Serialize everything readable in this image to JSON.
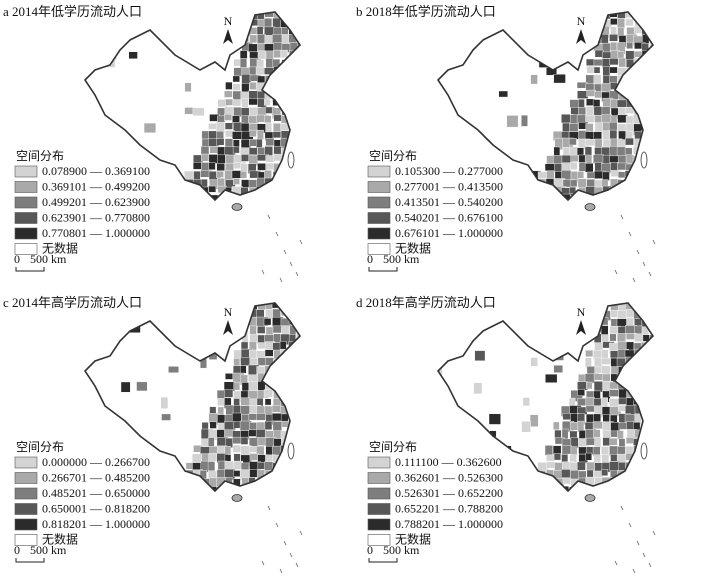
{
  "panels": [
    {
      "title": "a 2014年低学历流动人口",
      "legend_title": "空间分布",
      "legend": [
        {
          "label": "0.078900 — 0.369100",
          "color": "#d3d3d3"
        },
        {
          "label": "0.369101 — 0.499200",
          "color": "#a9a9a9"
        },
        {
          "label": "0.499201 — 0.623900",
          "color": "#7e7e7e"
        },
        {
          "label": "0.623901 — 0.770800",
          "color": "#575757"
        },
        {
          "label": "0.770801 — 1.000000",
          "color": "#2b2b2b"
        }
      ],
      "no_data": {
        "label": "无数据",
        "color": "#ffffff"
      },
      "north": "N",
      "scale": [
        "0",
        "500 km"
      ]
    },
    {
      "title": "b 2018年低学历流动人口",
      "legend_title": "空间分布",
      "legend": [
        {
          "label": "0.105300 — 0.277000",
          "color": "#d3d3d3"
        },
        {
          "label": "0.277001 — 0.413500",
          "color": "#a9a9a9"
        },
        {
          "label": "0.413501 — 0.540200",
          "color": "#7e7e7e"
        },
        {
          "label": "0.540201 — 0.676100",
          "color": "#575757"
        },
        {
          "label": "0.676101 — 1.000000",
          "color": "#2b2b2b"
        }
      ],
      "no_data": {
        "label": "无数据",
        "color": "#ffffff"
      },
      "north": "N",
      "scale": [
        "0",
        "500 km"
      ]
    },
    {
      "title": "c 2014年高学历流动人口",
      "legend_title": "空间分布",
      "legend": [
        {
          "label": "0.000000 — 0.266700",
          "color": "#d3d3d3"
        },
        {
          "label": "0.266701 — 0.485200",
          "color": "#a9a9a9"
        },
        {
          "label": "0.485201 — 0.650000",
          "color": "#7e7e7e"
        },
        {
          "label": "0.650001 — 0.818200",
          "color": "#575757"
        },
        {
          "label": "0.818201 — 1.000000",
          "color": "#2b2b2b"
        }
      ],
      "no_data": {
        "label": "无数据",
        "color": "#ffffff"
      },
      "north": "N",
      "scale": [
        "0",
        "500 km"
      ]
    },
    {
      "title": "d 2018年高学历流动人口",
      "legend_title": "空间分布",
      "legend": [
        {
          "label": "0.111100 — 0.362600",
          "color": "#d3d3d3"
        },
        {
          "label": "0.362601 — 0.526300",
          "color": "#a9a9a9"
        },
        {
          "label": "0.526301 — 0.652200",
          "color": "#7e7e7e"
        },
        {
          "label": "0.652201 — 0.788200",
          "color": "#575757"
        },
        {
          "label": "0.788201 — 1.000000",
          "color": "#2b2b2b"
        }
      ],
      "no_data": {
        "label": "无数据",
        "color": "#ffffff"
      },
      "north": "N",
      "scale": [
        "0",
        "500 km"
      ]
    }
  ]
}
